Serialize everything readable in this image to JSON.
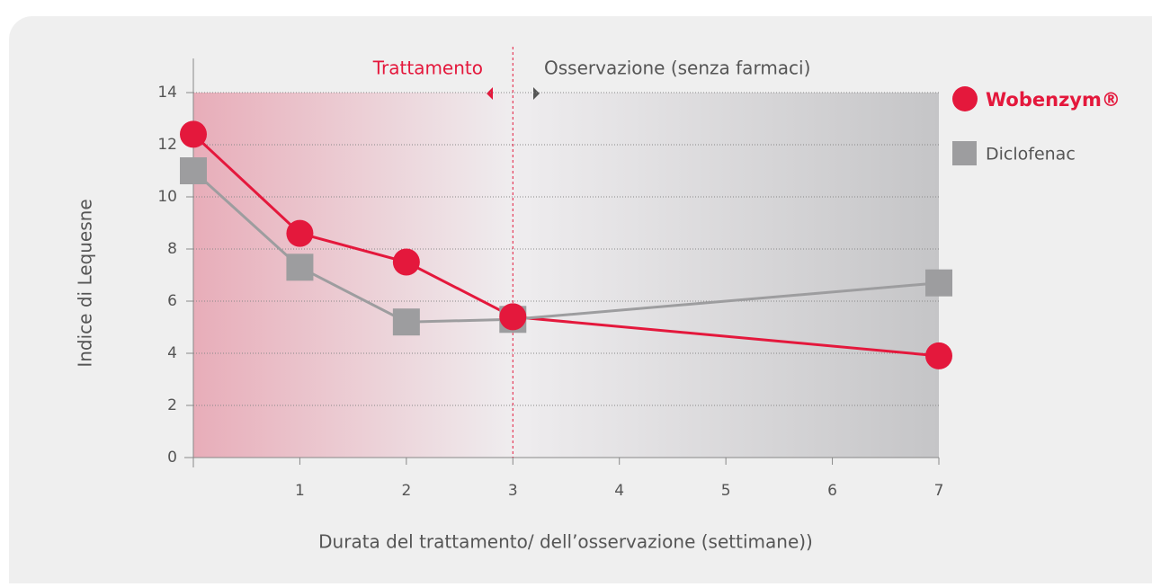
{
  "chart_data": {
    "type": "line",
    "annotations": [
      "Trattamento",
      "Osservazione (senza farmaci)"
    ],
    "xlabel": "Durata del trattamento/ dell’osservazione (settimane))",
    "ylabel": "Indice di Lequesne",
    "x": [
      0,
      1,
      2,
      3,
      7
    ],
    "series": [
      {
        "name": "Wobenzym®",
        "color": "#e4183c",
        "marker": "circle",
        "values": [
          12.4,
          8.6,
          7.5,
          5.4,
          3.9
        ]
      },
      {
        "name": "Diclofenac",
        "color": "#9d9d9f",
        "marker": "square",
        "values": [
          11.0,
          7.3,
          5.2,
          5.3,
          6.7
        ]
      }
    ],
    "xlim": [
      0,
      7
    ],
    "xticks": [
      1,
      2,
      3,
      4,
      5,
      6,
      7
    ],
    "ylim": [
      0,
      14
    ],
    "yticks": [
      0,
      2,
      4,
      6,
      8,
      10,
      12,
      14
    ],
    "grid": true,
    "legend": "upper right"
  }
}
